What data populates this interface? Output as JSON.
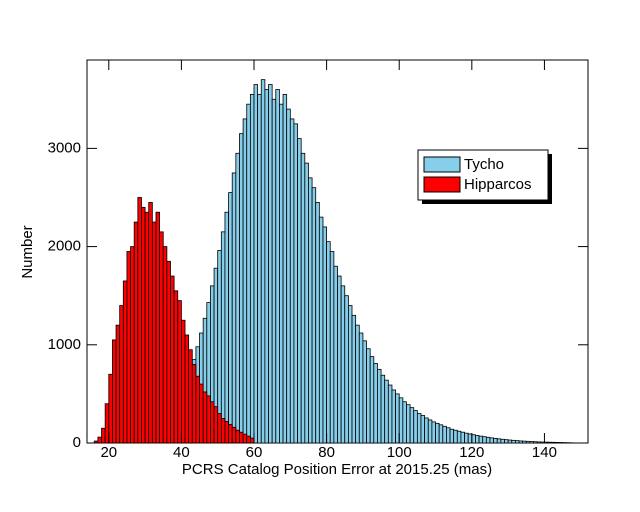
{
  "chart_data": {
    "type": "histogram",
    "xlabel": "PCRS Catalog Position Error at 2015.25 (mas)",
    "ylabel": "Number",
    "xlim": [
      14,
      152
    ],
    "ylim": [
      0,
      3900
    ],
    "xticks": [
      20,
      40,
      60,
      80,
      100,
      120,
      140
    ],
    "yticks": [
      0,
      1000,
      2000,
      3000
    ],
    "legend": "upper right",
    "series": [
      {
        "name": "Tycho",
        "color": "#87ceeb",
        "bins": [
          20,
          21,
          22,
          23,
          24,
          25,
          26,
          27,
          28,
          29,
          30,
          31,
          32,
          33,
          34,
          35,
          36,
          37,
          38,
          39,
          40,
          41,
          42,
          43,
          44,
          45,
          46,
          47,
          48,
          49,
          50,
          51,
          52,
          53,
          54,
          55,
          56,
          57,
          58,
          59,
          60,
          61,
          62,
          63,
          64,
          65,
          66,
          67,
          68,
          69,
          70,
          71,
          72,
          73,
          74,
          75,
          76,
          77,
          78,
          79,
          80,
          81,
          82,
          83,
          84,
          85,
          86,
          87,
          88,
          89,
          90,
          91,
          92,
          93,
          94,
          95,
          96,
          97,
          98,
          99,
          100,
          101,
          102,
          103,
          104,
          105,
          106,
          107,
          108,
          109,
          110,
          111,
          112,
          113,
          114,
          115,
          116,
          117,
          118,
          119,
          120,
          121,
          122,
          123,
          124,
          125,
          126,
          127,
          128,
          129,
          130,
          131,
          132,
          133,
          134,
          135,
          136,
          137,
          138,
          139,
          140,
          141,
          142,
          143,
          144,
          145,
          146,
          147,
          148
        ],
        "values": [
          2,
          3,
          5,
          8,
          12,
          18,
          25,
          35,
          48,
          62,
          80,
          100,
          125,
          155,
          190,
          230,
          275,
          330,
          390,
          460,
          540,
          630,
          730,
          850,
          980,
          1120,
          1270,
          1430,
          1600,
          1780,
          1960,
          2150,
          2350,
          2550,
          2750,
          2950,
          3150,
          3300,
          3450,
          3550,
          3650,
          3550,
          3700,
          3600,
          3650,
          3500,
          3600,
          3450,
          3550,
          3400,
          3300,
          3250,
          3100,
          2950,
          2850,
          2700,
          2600,
          2450,
          2300,
          2200,
          2050,
          1950,
          1800,
          1700,
          1600,
          1500,
          1400,
          1300,
          1200,
          1120,
          1040,
          960,
          880,
          810,
          750,
          690,
          640,
          590,
          540,
          500,
          460,
          420,
          390,
          360,
          330,
          300,
          280,
          255,
          235,
          215,
          200,
          185,
          170,
          155,
          140,
          130,
          120,
          110,
          100,
          92,
          84,
          76,
          70,
          64,
          58,
          52,
          47,
          42,
          38,
          34,
          30,
          27,
          24,
          21,
          19,
          17,
          15,
          13,
          11,
          10,
          9,
          8,
          7,
          6,
          5,
          4,
          3,
          2
        ]
      },
      {
        "name": "Hipparcos",
        "color": "#ff0000",
        "bins": [
          16,
          17,
          18,
          19,
          20,
          21,
          22,
          23,
          24,
          25,
          26,
          27,
          28,
          29,
          30,
          31,
          32,
          33,
          34,
          35,
          36,
          37,
          38,
          39,
          40,
          41,
          42,
          43,
          44,
          45,
          46,
          47,
          48,
          49,
          50,
          51,
          52,
          53,
          54,
          55,
          56,
          57,
          58,
          59,
          60
        ],
        "values": [
          20,
          60,
          150,
          400,
          700,
          1050,
          1200,
          1400,
          1650,
          1950,
          2000,
          2250,
          2500,
          2400,
          2350,
          2450,
          2250,
          2350,
          2150,
          2000,
          1850,
          1700,
          1550,
          1450,
          1250,
          1100,
          950,
          800,
          680,
          600,
          520,
          480,
          420,
          370,
          300,
          250,
          220,
          190,
          160,
          130,
          110,
          90,
          70,
          50
        ]
      }
    ]
  }
}
